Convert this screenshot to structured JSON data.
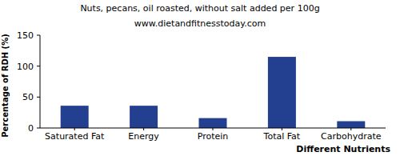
{
  "chart_data": {
    "type": "bar",
    "title": "Nuts, pecans, oil roasted, without salt added per 100g",
    "subtitle": "www.dietandfitnesstoday.com",
    "y_label": "Percentage of RDH (%)",
    "x_label": "Different Nutrients",
    "categories": [
      "Saturated Fat",
      "Energy",
      "Protein",
      "Total Fat",
      "Carbohydrate"
    ],
    "values": [
      36,
      36,
      16,
      115,
      11
    ],
    "color": "#233f8f",
    "ylim": [
      0,
      150
    ],
    "yticks": [
      0,
      50,
      100,
      150
    ],
    "grid": false
  }
}
